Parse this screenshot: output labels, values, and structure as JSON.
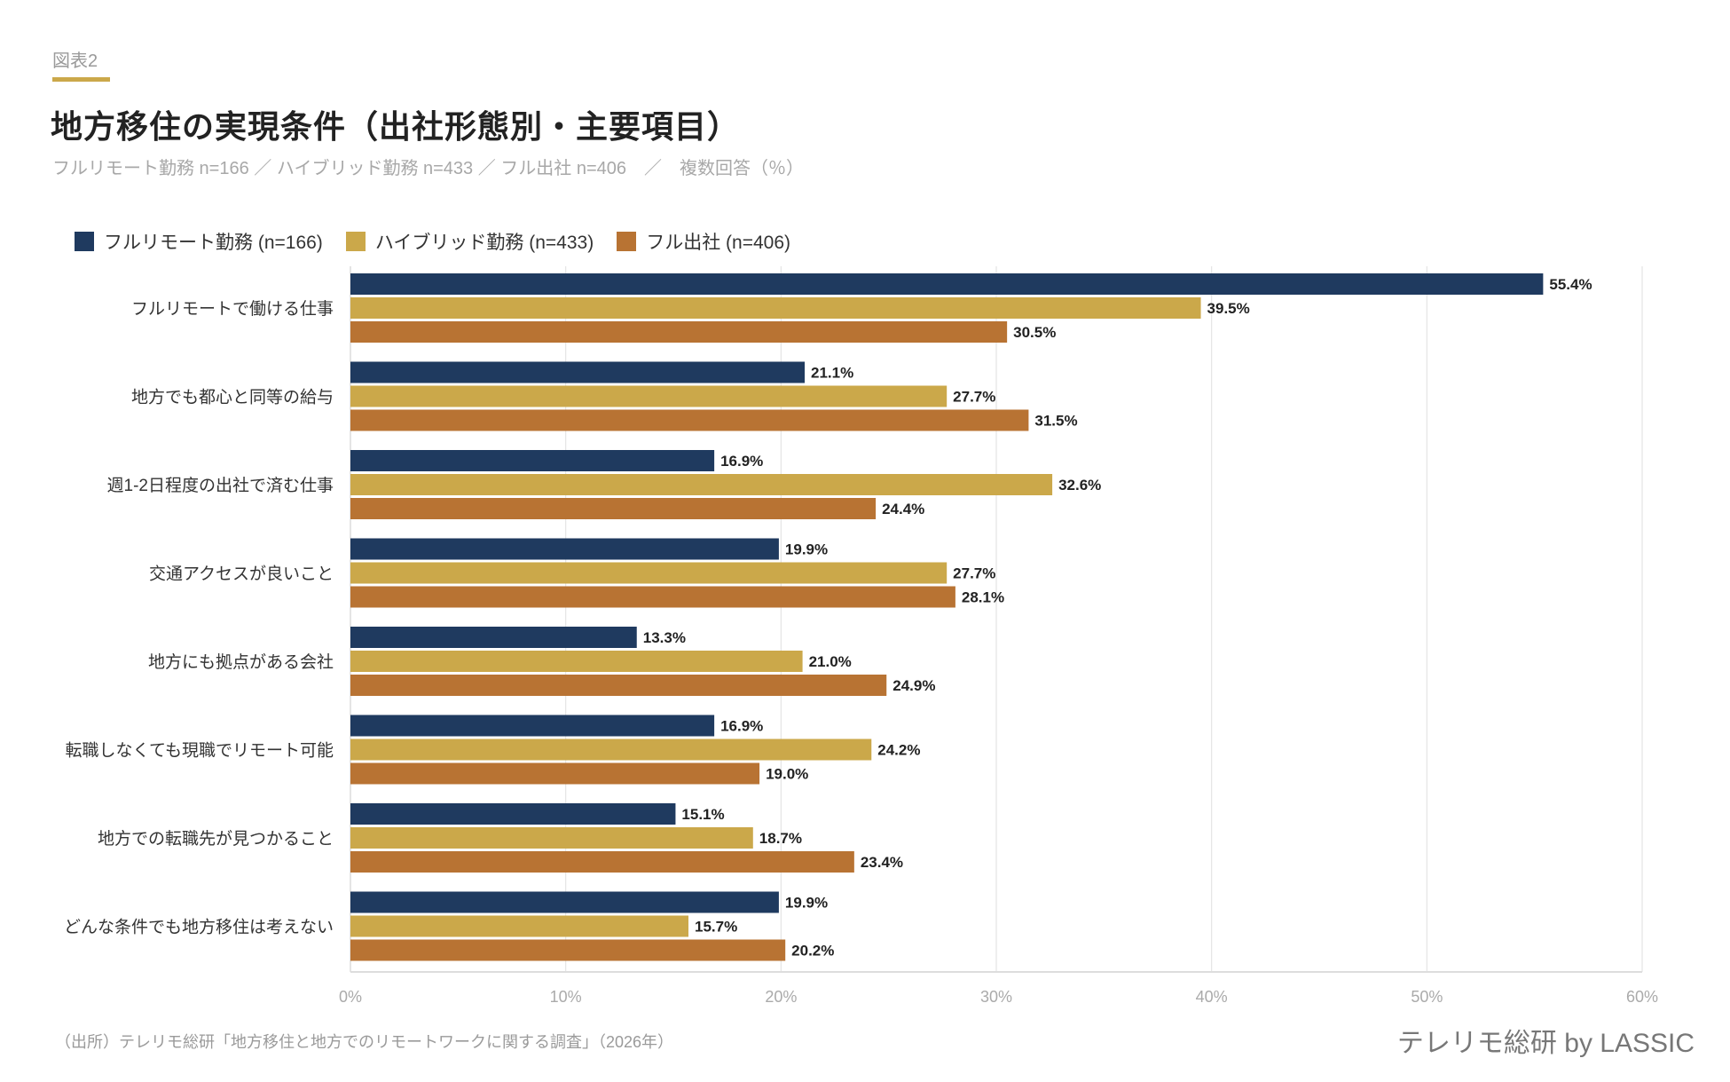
{
  "figure_label": "図表2",
  "title": "地方移住の実現条件（出社形態別・主要項目）",
  "subtitle": "フルリモート勤務 n=166 ／ ハイブリッド勤務 n=433 ／ フル出社 n=406　／　複数回答（％）",
  "footer": "（出所）テレリモ総研「地方移住と地方でのリモートワークに関する調査」（2026年）",
  "brand": "テレリモ総研 by LASSIC",
  "chart_data": {
    "type": "bar",
    "orientation": "horizontal",
    "categories": [
      "フルリモートで働ける仕事",
      "地方でも都心と同等の給与",
      "週1-2日程度の出社で済む仕事",
      "交通アクセスが良いこと",
      "地方にも拠点がある会社",
      "転職しなくても現職でリモート可能",
      "地方での転職先が見つかること",
      "どんな条件でも地方移住は考えない"
    ],
    "series": [
      {
        "name": "フルリモート勤務 (n=166)",
        "color": "#1f3a5f",
        "values": [
          55.4,
          21.1,
          16.9,
          19.9,
          13.3,
          16.9,
          15.1,
          19.9
        ]
      },
      {
        "name": "ハイブリッド勤務 (n=433)",
        "color": "#cba84a",
        "values": [
          39.5,
          27.7,
          32.6,
          27.7,
          21.0,
          24.2,
          18.7,
          15.7
        ]
      },
      {
        "name": "フル出社 (n=406)",
        "color": "#b87333",
        "values": [
          30.5,
          31.5,
          24.4,
          28.1,
          24.9,
          19.0,
          23.4,
          20.2
        ]
      }
    ],
    "xlim": [
      0,
      60
    ],
    "xticks": [
      "0%",
      "10%",
      "20%",
      "30%",
      "40%",
      "50%",
      "60%"
    ],
    "grid": true,
    "legend_position": "top-left",
    "value_format": "percent-1dp"
  }
}
